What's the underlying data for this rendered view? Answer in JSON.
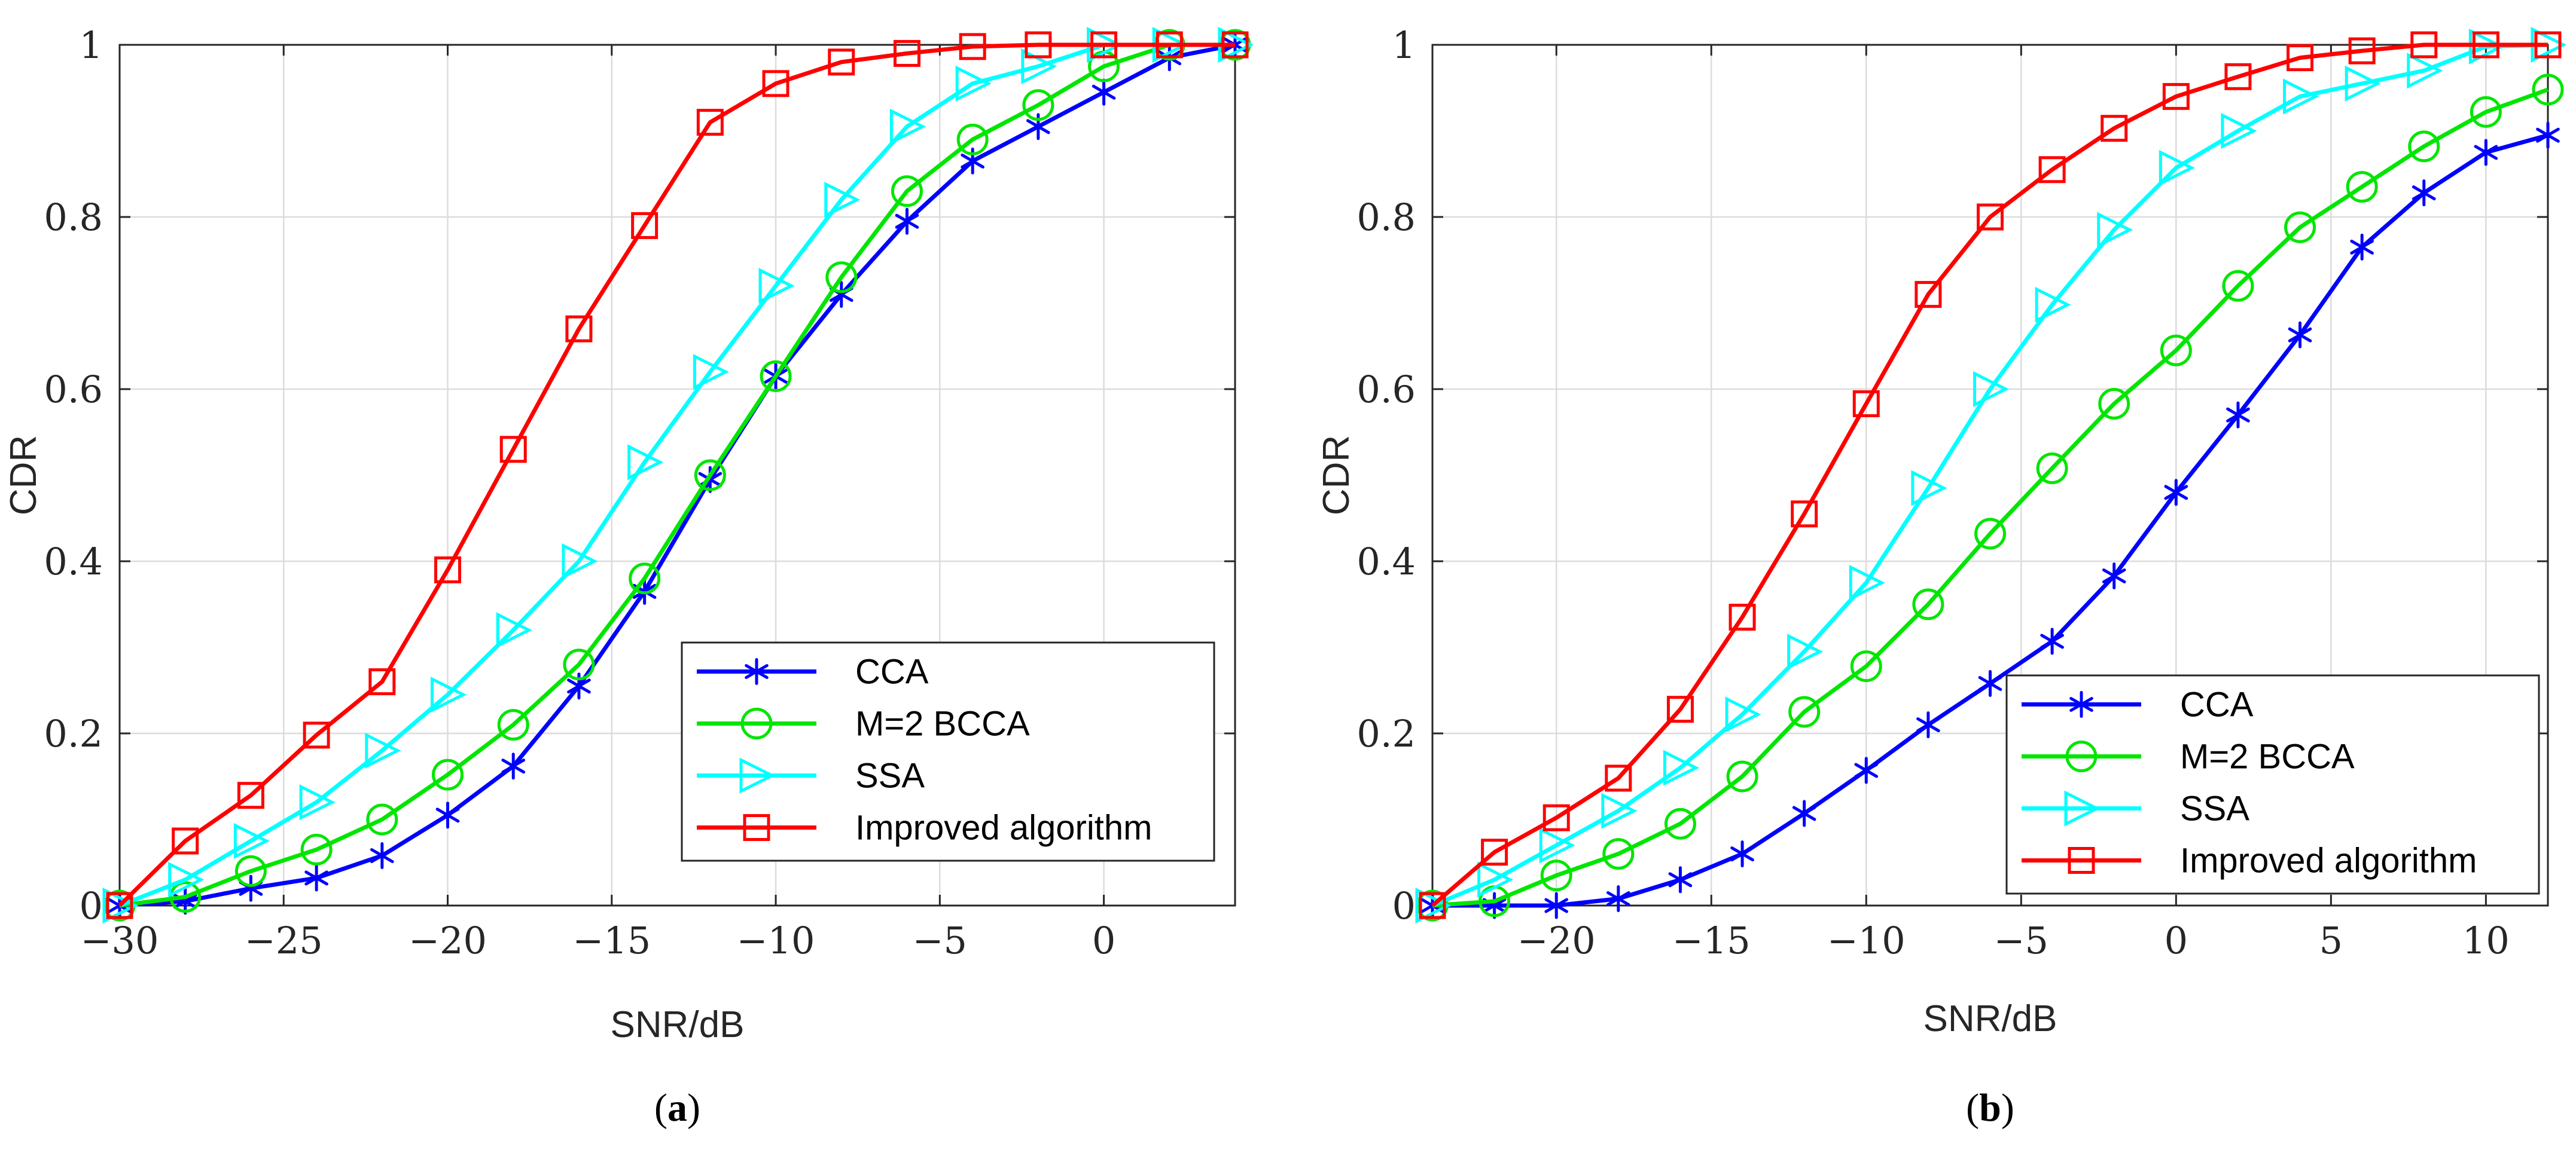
{
  "chart_data": [
    {
      "type": "line",
      "caption": {
        "open": "(",
        "letter": "a",
        "close": ")"
      },
      "xlabel": "SNR/dB",
      "ylabel": "CDR",
      "xlim": [
        -30,
        4
      ],
      "ylim": [
        0,
        1
      ],
      "xticks": [
        -30,
        -25,
        -20,
        -15,
        -10,
        -5,
        0
      ],
      "xtick_labels": [
        "−30",
        "−25",
        "−20",
        "−15",
        "−10",
        "−5",
        "0"
      ],
      "yticks": [
        0,
        0.2,
        0.4,
        0.6,
        0.8,
        1
      ],
      "ytick_labels": [
        "0",
        "0.2",
        "0.4",
        "0.6",
        "0.8",
        "1"
      ],
      "grid": true,
      "legend_position": "bottom-right",
      "series": [
        {
          "name": "CCA",
          "color": "#0000ff",
          "marker": "asterisk",
          "x": [
            -30,
            -28,
            -26,
            -24,
            -22,
            -20,
            -18,
            -16,
            -14,
            -12,
            -10,
            -8,
            -6,
            -4,
            -2,
            0,
            2,
            4
          ],
          "y": [
            0,
            0.005,
            0.02,
            0.032,
            0.058,
            0.105,
            0.162,
            0.255,
            0.365,
            0.495,
            0.615,
            0.71,
            0.795,
            0.865,
            0.905,
            0.945,
            0.985,
            1.0
          ]
        },
        {
          "name": "M=2 BCCA",
          "color": "#00e600",
          "marker": "circle",
          "x": [
            -30,
            -28,
            -26,
            -24,
            -22,
            -20,
            -18,
            -16,
            -14,
            -12,
            -10,
            -8,
            -6,
            -4,
            -2,
            0,
            2,
            4
          ],
          "y": [
            0,
            0.01,
            0.04,
            0.065,
            0.1,
            0.152,
            0.21,
            0.28,
            0.38,
            0.5,
            0.615,
            0.73,
            0.83,
            0.89,
            0.93,
            0.975,
            1.0,
            1.0
          ]
        },
        {
          "name": "SSA",
          "color": "#00ffff",
          "marker": "triangle-right",
          "x": [
            -30,
            -28,
            -26,
            -24,
            -22,
            -20,
            -18,
            -16,
            -14,
            -12,
            -10,
            -8,
            -6,
            -4,
            -2,
            0,
            2,
            4
          ],
          "y": [
            0,
            0.03,
            0.075,
            0.12,
            0.18,
            0.245,
            0.32,
            0.4,
            0.515,
            0.62,
            0.72,
            0.82,
            0.905,
            0.955,
            0.975,
            1.0,
            1.0,
            1.0
          ]
        },
        {
          "name": "Improved algorithm",
          "color": "#ff0000",
          "marker": "square",
          "x": [
            -30,
            -28,
            -26,
            -24,
            -22,
            -20,
            -18,
            -16,
            -14,
            -12,
            -10,
            -8,
            -6,
            -4,
            -2,
            0,
            2,
            4
          ],
          "y": [
            0,
            0.075,
            0.128,
            0.198,
            0.26,
            0.39,
            0.53,
            0.67,
            0.79,
            0.91,
            0.955,
            0.98,
            0.99,
            0.998,
            1.0,
            1.0,
            1.0,
            1.0
          ]
        }
      ]
    },
    {
      "type": "line",
      "caption": {
        "open": "(",
        "letter": "b",
        "close": ")"
      },
      "xlabel": "SNR/dB",
      "ylabel": "CDR",
      "xlim": [
        -24,
        12
      ],
      "ylim": [
        0,
        1
      ],
      "xticks": [
        -20,
        -15,
        -10,
        -5,
        0,
        5,
        10
      ],
      "xtick_labels": [
        "−20",
        "−15",
        "−10",
        "−5",
        "0",
        "5",
        "10"
      ],
      "yticks": [
        0,
        0.2,
        0.4,
        0.6,
        0.8,
        1
      ],
      "ytick_labels": [
        "0",
        "0.2",
        "0.4",
        "0.6",
        "0.8",
        "1"
      ],
      "grid": true,
      "legend_position": "bottom-right",
      "series": [
        {
          "name": "CCA",
          "color": "#0000ff",
          "marker": "asterisk",
          "x": [
            -24,
            -22,
            -20,
            -18,
            -16,
            -14,
            -12,
            -10,
            -8,
            -6,
            -4,
            -2,
            0,
            2,
            4,
            6,
            8,
            10,
            12
          ],
          "y": [
            0,
            0,
            0,
            0.008,
            0.03,
            0.06,
            0.107,
            0.157,
            0.21,
            0.258,
            0.307,
            0.383,
            0.48,
            0.57,
            0.663,
            0.765,
            0.828,
            0.875,
            0.895
          ]
        },
        {
          "name": "M=2 BCCA",
          "color": "#00e600",
          "marker": "circle",
          "x": [
            -24,
            -22,
            -20,
            -18,
            -16,
            -14,
            -12,
            -10,
            -8,
            -6,
            -4,
            -2,
            0,
            2,
            4,
            6,
            8,
            10,
            12
          ],
          "y": [
            0,
            0.005,
            0.035,
            0.06,
            0.095,
            0.15,
            0.225,
            0.278,
            0.35,
            0.432,
            0.508,
            0.583,
            0.645,
            0.72,
            0.788,
            0.835,
            0.882,
            0.922,
            0.948
          ]
        },
        {
          "name": "SSA",
          "color": "#00ffff",
          "marker": "triangle-right",
          "x": [
            -24,
            -22,
            -20,
            -18,
            -16,
            -14,
            -12,
            -10,
            -8,
            -6,
            -4,
            -2,
            0,
            2,
            4,
            6,
            8,
            10,
            12
          ],
          "y": [
            0,
            0.03,
            0.07,
            0.11,
            0.16,
            0.222,
            0.295,
            0.375,
            0.485,
            0.6,
            0.698,
            0.785,
            0.857,
            0.9,
            0.94,
            0.955,
            0.97,
            0.998,
            1.0
          ]
        },
        {
          "name": "Improved algorithm",
          "color": "#ff0000",
          "marker": "square",
          "x": [
            -24,
            -22,
            -20,
            -18,
            -16,
            -14,
            -12,
            -10,
            -8,
            -6,
            -4,
            -2,
            0,
            2,
            4,
            6,
            8,
            10,
            12
          ],
          "y": [
            0,
            0.062,
            0.102,
            0.148,
            0.228,
            0.335,
            0.455,
            0.583,
            0.71,
            0.8,
            0.855,
            0.903,
            0.94,
            0.963,
            0.985,
            0.993,
            1.0,
            1.0,
            1.0
          ]
        }
      ]
    }
  ]
}
